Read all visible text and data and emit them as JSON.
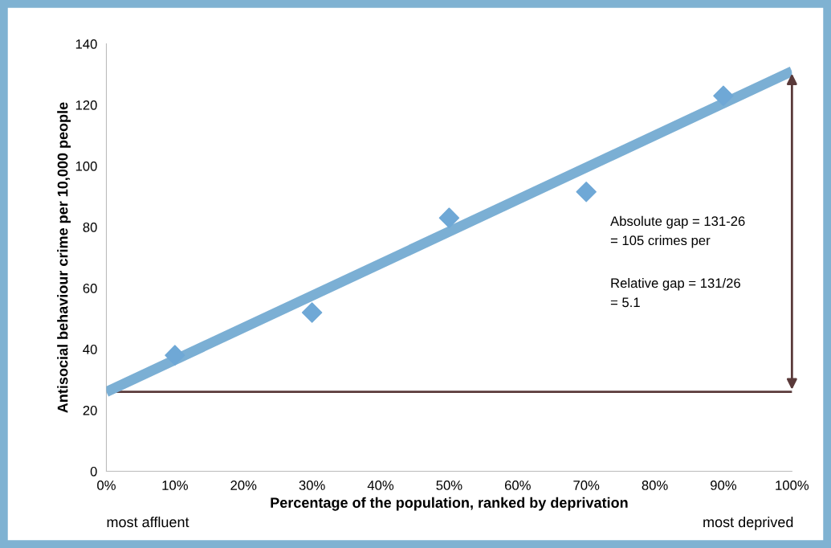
{
  "chart_data": {
    "type": "scatter",
    "xlabel": "Percentage of the population, ranked by deprivation",
    "ylabel": "Antisocial behaviour crime per 10,000 people",
    "series": [
      {
        "color": "#6fa8d6",
        "marker": "diamond",
        "x": [
          10,
          30,
          50,
          70,
          90
        ],
        "values": [
          38,
          52,
          83,
          91.5,
          123
        ]
      },
      {
        "type": "line",
        "color": "#7bafd4",
        "marker": "none",
        "x": [
          0,
          100
        ],
        "values": [
          26,
          131
        ]
      }
    ],
    "xlim": [
      0,
      100
    ],
    "ylim": [
      0,
      140
    ],
    "xticks": [
      {
        "value": 0,
        "label": "0%"
      },
      {
        "value": 10,
        "label": "10%"
      },
      {
        "value": 20,
        "label": "20%"
      },
      {
        "value": 30,
        "label": "30%"
      },
      {
        "value": 40,
        "label": "40%"
      },
      {
        "value": 50,
        "label": "50%"
      },
      {
        "value": 60,
        "label": "60%"
      },
      {
        "value": 70,
        "label": "70%"
      },
      {
        "value": 80,
        "label": "80%"
      },
      {
        "value": 90,
        "label": "90%"
      },
      {
        "value": 100,
        "label": "100%"
      }
    ],
    "yticks": [
      0,
      20,
      40,
      60,
      80,
      100,
      120,
      140
    ],
    "ref_lines": [
      {
        "axis": "y",
        "value": 26,
        "color": "#5a3a3a"
      }
    ],
    "annotations": [
      "Absolute gap = 131-26\n= 105 crimes per",
      "Relative gap = 131/26\n= 5.1",
      "most affluent",
      "most deprived"
    ],
    "grid": false,
    "legend": false
  }
}
